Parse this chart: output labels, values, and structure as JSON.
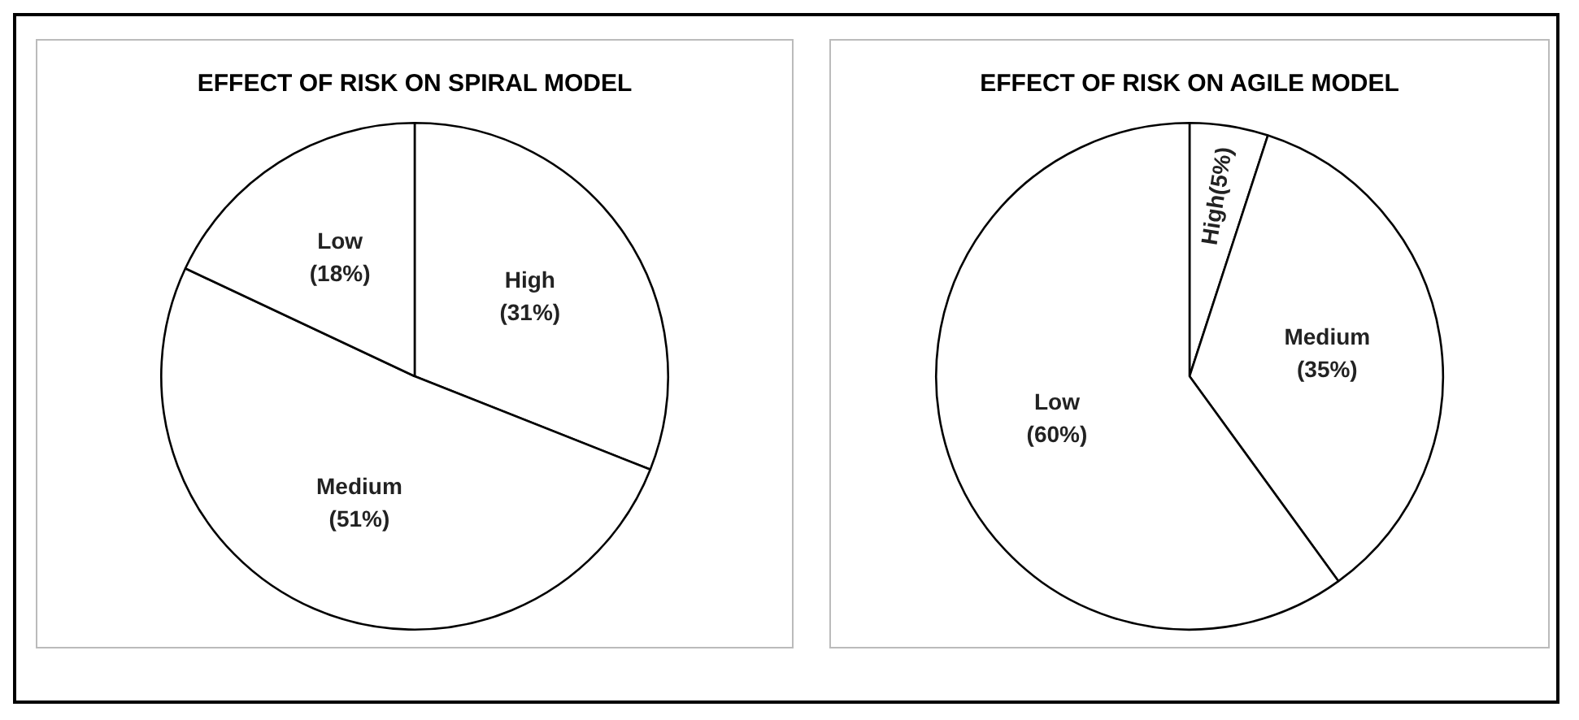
{
  "chart_data": [
    {
      "type": "pie",
      "title": "EFFECT OF RISK ON SPIRAL MODEL",
      "categories": [
        "High",
        "Medium",
        "Low"
      ],
      "values": [
        31,
        51,
        18
      ],
      "colors": [
        "#ffffff",
        "#ffffff",
        "#ffffff"
      ],
      "value_labels": [
        "(31%)",
        "(51%)",
        "(18%)"
      ],
      "legend": false
    },
    {
      "type": "pie",
      "title": "EFFECT OF RISK ON AGILE MODEL",
      "categories": [
        "High",
        "Medium",
        "Low"
      ],
      "values": [
        5,
        35,
        60
      ],
      "colors": [
        "#ffffff",
        "#ffffff",
        "#ffffff"
      ],
      "value_labels": [
        "(5%)",
        "(35%)",
        "(60%)"
      ],
      "legend": false
    }
  ]
}
